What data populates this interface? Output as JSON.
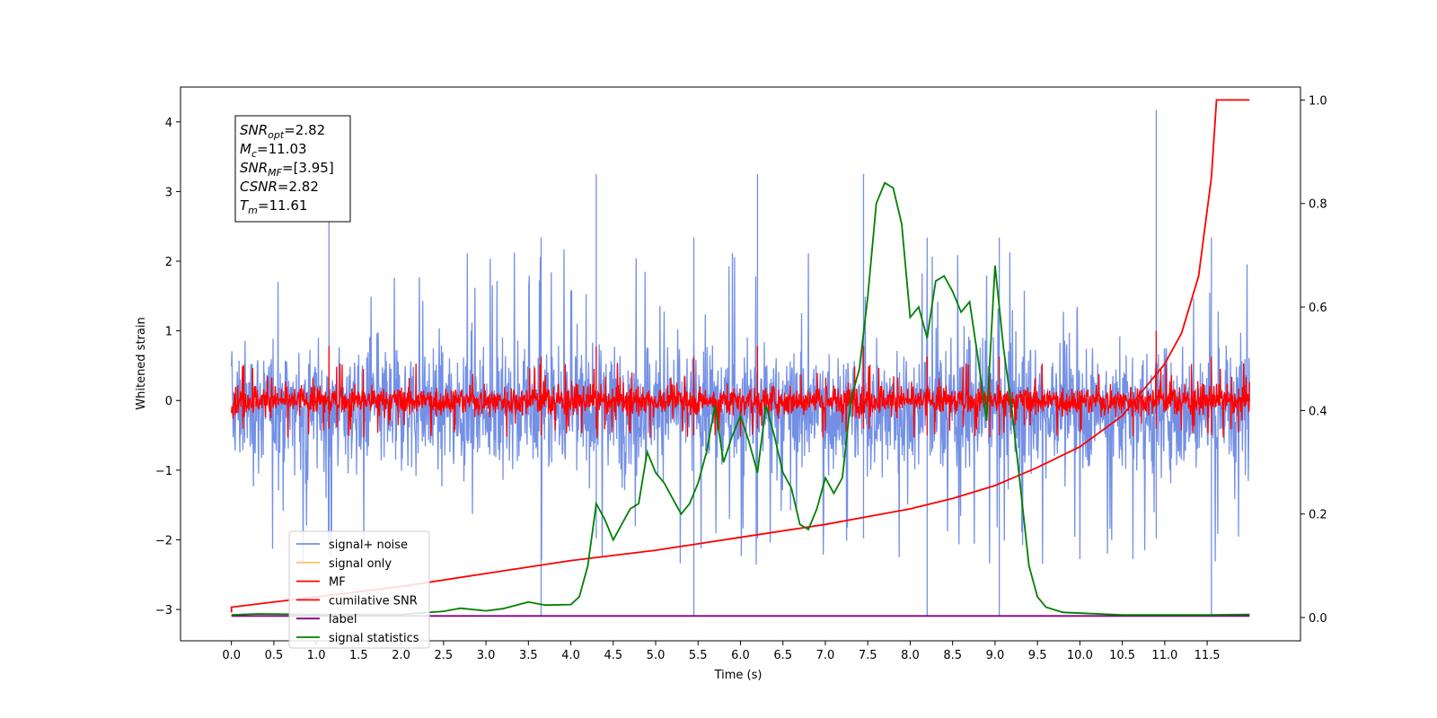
{
  "chart_data": {
    "type": "line",
    "title": "",
    "xlabel": "Time (s)",
    "ylabel": "Whitened strain",
    "xlim": [
      -0.6,
      12.6
    ],
    "ylim": [
      -3.45,
      4.5
    ],
    "y2lim": [
      -0.045,
      1.025
    ],
    "xticks": [
      "0.0",
      "0.5",
      "1.0",
      "1.5",
      "2.0",
      "2.5",
      "3.0",
      "3.5",
      "4.0",
      "4.5",
      "5.0",
      "5.5",
      "6.0",
      "6.5",
      "7.0",
      "7.5",
      "8.0",
      "8.5",
      "9.0",
      "9.5",
      "10.0",
      "10.5",
      "11.0",
      "11.5"
    ],
    "yticks": [
      "−3",
      "−2",
      "−1",
      "0",
      "1",
      "2",
      "3",
      "4"
    ],
    "y2ticks": [
      "0.0",
      "0.2",
      "0.4",
      "0.6",
      "0.8",
      "1.0"
    ],
    "grid": false,
    "legend_position": "lower-left",
    "annotation": [
      {
        "base": "SNR",
        "sub": "opt",
        "value": "=2.82"
      },
      {
        "base": "M",
        "sub": "c",
        "value": "=11.03"
      },
      {
        "base": "SNR",
        "sub": "MF",
        "value": "=[3.95]"
      },
      {
        "base": "CSNR",
        "sub": "",
        "value": "=2.82"
      },
      {
        "base": "T",
        "sub": "m",
        "value": "=11.61"
      }
    ],
    "series": [
      {
        "name": "signal+ noise",
        "color": "#7390e6",
        "kind": "noise",
        "x_range": [
          0,
          12.0
        ],
        "center": -0.1,
        "envelope": [
          -2.2,
          2.6
        ],
        "spikes_max": 4.17,
        "spikes_min": -3.1
      },
      {
        "name": "signal only",
        "color": "#ffc36b",
        "kind": "none"
      },
      {
        "name": "MF",
        "color": "#ff0000",
        "kind": "noise",
        "x_range": [
          0,
          12.0
        ],
        "center": 0.0,
        "envelope": [
          -0.45,
          0.7
        ],
        "spikes_max": 1.0,
        "spikes_min": -0.5
      },
      {
        "name": "cumilative SNR",
        "color": "#ff0000",
        "axis": "right",
        "x": [
          0.0,
          0.0,
          1.0,
          2.0,
          3.0,
          4.0,
          5.0,
          6.0,
          7.0,
          7.5,
          8.0,
          8.5,
          9.0,
          9.5,
          10.0,
          10.5,
          11.0,
          11.2,
          11.4,
          11.55,
          11.61,
          12.0
        ],
        "y": [
          0.01,
          0.02,
          0.04,
          0.06,
          0.085,
          0.11,
          0.13,
          0.155,
          0.18,
          0.195,
          0.21,
          0.23,
          0.255,
          0.29,
          0.33,
          0.39,
          0.49,
          0.55,
          0.66,
          0.85,
          1.0,
          1.0
        ]
      },
      {
        "name": "label",
        "color": "#800080",
        "axis": "right",
        "x": [
          0.0,
          12.0
        ],
        "y": [
          0.003,
          0.003
        ]
      },
      {
        "name": "signal statistics",
        "color": "#008000",
        "axis": "right",
        "x": [
          0.0,
          0.3,
          1.0,
          2.0,
          2.5,
          2.7,
          3.0,
          3.2,
          3.5,
          3.7,
          4.0,
          4.1,
          4.2,
          4.3,
          4.4,
          4.5,
          4.6,
          4.7,
          4.8,
          4.9,
          5.0,
          5.1,
          5.2,
          5.3,
          5.4,
          5.5,
          5.6,
          5.7,
          5.8,
          5.9,
          6.0,
          6.1,
          6.2,
          6.3,
          6.4,
          6.5,
          6.6,
          6.7,
          6.8,
          6.9,
          7.0,
          7.1,
          7.2,
          7.3,
          7.4,
          7.5,
          7.6,
          7.7,
          7.8,
          7.9,
          8.0,
          8.1,
          8.2,
          8.3,
          8.4,
          8.5,
          8.6,
          8.7,
          8.8,
          8.9,
          9.0,
          9.1,
          9.2,
          9.3,
          9.4,
          9.5,
          9.6,
          9.8,
          10.5,
          11.5,
          12.0
        ],
        "y": [
          0.005,
          0.007,
          0.006,
          0.006,
          0.012,
          0.018,
          0.013,
          0.017,
          0.03,
          0.024,
          0.025,
          0.04,
          0.1,
          0.22,
          0.19,
          0.15,
          0.18,
          0.21,
          0.22,
          0.32,
          0.28,
          0.26,
          0.23,
          0.2,
          0.22,
          0.26,
          0.32,
          0.41,
          0.3,
          0.35,
          0.39,
          0.34,
          0.28,
          0.41,
          0.35,
          0.28,
          0.25,
          0.18,
          0.17,
          0.21,
          0.27,
          0.24,
          0.27,
          0.42,
          0.48,
          0.62,
          0.8,
          0.84,
          0.83,
          0.76,
          0.58,
          0.6,
          0.54,
          0.65,
          0.66,
          0.63,
          0.59,
          0.61,
          0.5,
          0.38,
          0.68,
          0.52,
          0.4,
          0.25,
          0.1,
          0.04,
          0.02,
          0.01,
          0.005,
          0.005,
          0.006
        ]
      }
    ]
  }
}
